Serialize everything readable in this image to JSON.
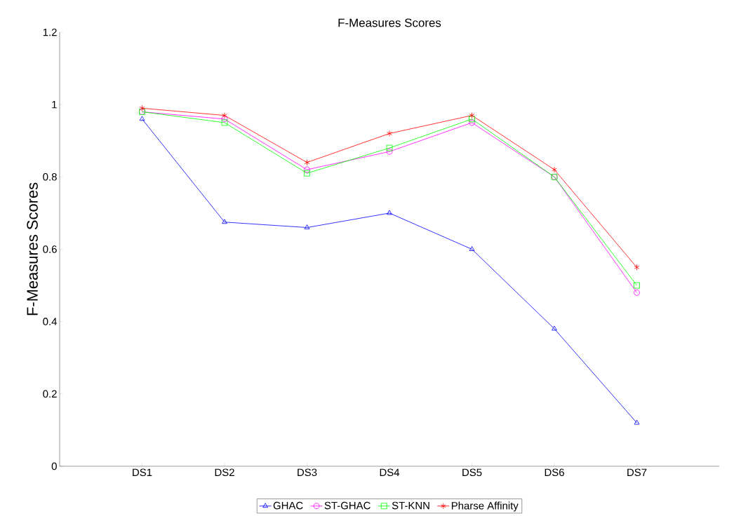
{
  "chart_data": {
    "type": "line",
    "title": "F-Measures Scores",
    "ylabel": "F-Measures Scores",
    "categories": [
      "DS1",
      "DS2",
      "DS3",
      "DS4",
      "DS5",
      "DS6",
      "DS7"
    ],
    "series": [
      {
        "name": "GHAC",
        "color": "#0000ff",
        "marker": "triangle",
        "values": [
          0.96,
          0.675,
          0.66,
          0.7,
          0.6,
          0.38,
          0.12
        ]
      },
      {
        "name": "ST-GHAC",
        "color": "#ff00ff",
        "marker": "circle",
        "values": [
          0.98,
          0.96,
          0.82,
          0.87,
          0.95,
          0.8,
          0.48
        ]
      },
      {
        "name": "ST-KNN",
        "color": "#00ff00",
        "marker": "square",
        "values": [
          0.98,
          0.95,
          0.81,
          0.88,
          0.96,
          0.8,
          0.5
        ]
      },
      {
        "name": "Pharse Affinity",
        "color": "#ff0000",
        "marker": "cross",
        "values": [
          0.99,
          0.97,
          0.84,
          0.92,
          0.97,
          0.82,
          0.55
        ]
      }
    ],
    "ylim": [
      0,
      1.2
    ],
    "yticks": [
      0,
      0.2,
      0.4,
      0.6,
      0.8,
      1,
      1.2
    ],
    "grid": false,
    "legend": "bottom",
    "line_style": "solid"
  }
}
